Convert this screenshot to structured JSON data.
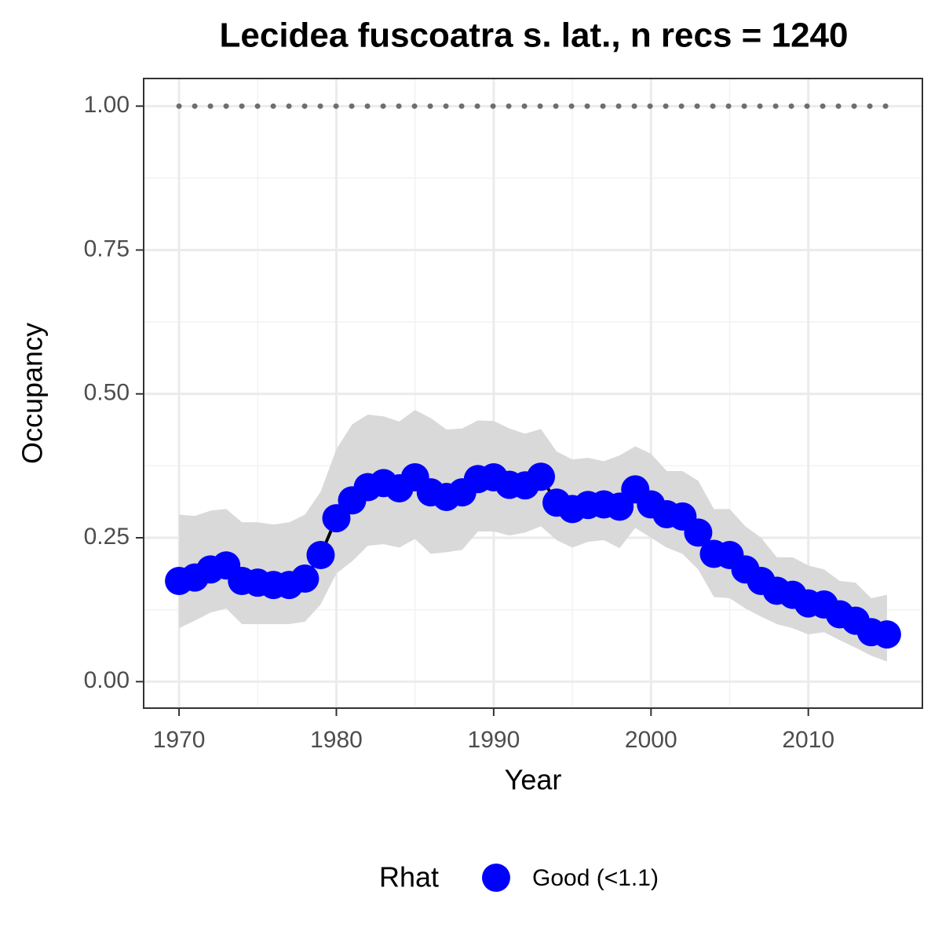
{
  "chart_data": {
    "type": "line",
    "title": "Lecidea fuscoatra s. lat., n recs = 1240",
    "xlabel": "Year",
    "ylabel": "Occupancy",
    "x": [
      1970,
      1971,
      1972,
      1973,
      1974,
      1975,
      1976,
      1977,
      1978,
      1979,
      1980,
      1981,
      1982,
      1983,
      1984,
      1985,
      1986,
      1987,
      1988,
      1989,
      1990,
      1991,
      1992,
      1993,
      1994,
      1995,
      1996,
      1997,
      1998,
      1999,
      2000,
      2001,
      2002,
      2003,
      2004,
      2005,
      2006,
      2007,
      2008,
      2009,
      2010,
      2011,
      2012,
      2013,
      2014,
      2015
    ],
    "series": [
      {
        "name": "Good (<1.1)",
        "color": "#0000ff",
        "line_color": "#000000",
        "values": [
          0.175,
          0.181,
          0.195,
          0.202,
          0.175,
          0.172,
          0.168,
          0.168,
          0.179,
          0.22,
          0.284,
          0.315,
          0.338,
          0.345,
          0.336,
          0.355,
          0.329,
          0.321,
          0.329,
          0.352,
          0.355,
          0.342,
          0.341,
          0.356,
          0.311,
          0.3,
          0.307,
          0.308,
          0.304,
          0.334,
          0.308,
          0.291,
          0.287,
          0.259,
          0.222,
          0.22,
          0.195,
          0.175,
          0.158,
          0.151,
          0.136,
          0.134,
          0.117,
          0.106,
          0.086,
          0.082
        ],
        "upper": [
          0.29,
          0.288,
          0.297,
          0.3,
          0.277,
          0.277,
          0.273,
          0.277,
          0.29,
          0.33,
          0.404,
          0.447,
          0.464,
          0.461,
          0.452,
          0.472,
          0.458,
          0.438,
          0.44,
          0.454,
          0.453,
          0.44,
          0.431,
          0.439,
          0.4,
          0.386,
          0.389,
          0.383,
          0.393,
          0.409,
          0.396,
          0.366,
          0.366,
          0.349,
          0.3,
          0.3,
          0.27,
          0.25,
          0.216,
          0.216,
          0.202,
          0.195,
          0.175,
          0.172,
          0.145,
          0.151
        ],
        "lower": [
          0.093,
          0.106,
          0.12,
          0.127,
          0.1,
          0.1,
          0.1,
          0.1,
          0.104,
          0.134,
          0.188,
          0.209,
          0.236,
          0.239,
          0.233,
          0.248,
          0.222,
          0.225,
          0.229,
          0.261,
          0.261,
          0.254,
          0.259,
          0.27,
          0.246,
          0.233,
          0.243,
          0.246,
          0.232,
          0.267,
          0.25,
          0.233,
          0.222,
          0.195,
          0.147,
          0.145,
          0.127,
          0.113,
          0.1,
          0.093,
          0.082,
          0.086,
          0.072,
          0.059,
          0.045,
          0.035
        ],
        "band_color": "#d9d9d9"
      }
    ],
    "reference_line": 1,
    "reference_color": "#6e6e6e",
    "legend_title": "Rhat",
    "legend": "bottom",
    "xlim": [
      1967.75,
      2017.25
    ],
    "xticks": [
      1970,
      1980,
      1990,
      2000,
      2010
    ],
    "ylim": [
      -0.046,
      1.048
    ],
    "yticks": [
      {
        "value": 0,
        "label": "0.00"
      },
      {
        "value": 0.25,
        "label": "0.25"
      },
      {
        "value": 0.5,
        "label": "0.50"
      },
      {
        "value": 0.75,
        "label": "0.75"
      },
      {
        "value": 1,
        "label": "1.00"
      }
    ],
    "grid": true
  }
}
